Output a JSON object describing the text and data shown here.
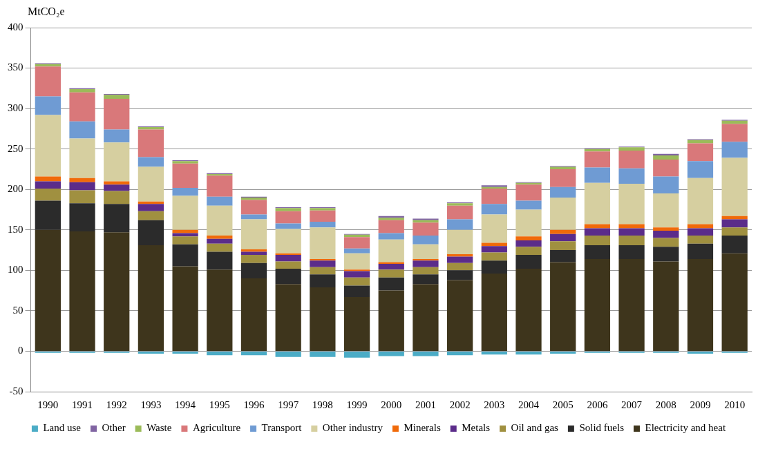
{
  "chart_data": {
    "type": "bar",
    "stacked": true,
    "ylabel": "MtCO₂e",
    "categories": [
      "1990",
      "1991",
      "1992",
      "1993",
      "1994",
      "1995",
      "1996",
      "1997",
      "1998",
      "1999",
      "2000",
      "2001",
      "2002",
      "2003",
      "2004",
      "2005",
      "2006",
      "2007",
      "2008",
      "2009",
      "2010"
    ],
    "series": [
      {
        "name": "Land use",
        "color": "#4bacc6",
        "values": [
          -2,
          -2,
          -2,
          -3,
          -3,
          -5,
          -5,
          -7,
          -7,
          -8,
          -6,
          -6,
          -5,
          -4,
          -4,
          -3,
          -2,
          -2,
          -2,
          -3,
          -2
        ]
      },
      {
        "name": "Electricity and heat",
        "color": "#3e351c",
        "values": [
          150,
          148,
          147,
          131,
          105,
          101,
          90,
          83,
          79,
          67,
          75,
          83,
          88,
          96,
          102,
          110,
          114,
          114,
          111,
          114,
          121
        ]
      },
      {
        "name": "Solid fuels",
        "color": "#2b2b2b",
        "values": [
          36,
          35,
          35,
          31,
          27,
          22,
          19,
          19,
          16,
          14,
          16,
          12,
          12,
          16,
          17,
          15,
          17,
          17,
          18,
          19,
          22
        ]
      },
      {
        "name": "Oil and gas",
        "color": "#a09040",
        "values": [
          15,
          16,
          16,
          11,
          10,
          10,
          10,
          9,
          9,
          10,
          10,
          9,
          9,
          10,
          10,
          11,
          12,
          12,
          11,
          10,
          10
        ]
      },
      {
        "name": "Metals",
        "color": "#5b2c8a",
        "values": [
          9,
          10,
          8,
          9,
          4,
          6,
          4,
          8,
          8,
          8,
          7,
          8,
          8,
          8,
          8,
          9,
          9,
          9,
          9,
          9,
          10
        ]
      },
      {
        "name": "Minerals",
        "color": "#f06a0a",
        "values": [
          6,
          5,
          4,
          3,
          4,
          4,
          3,
          2,
          2,
          2,
          2,
          2,
          3,
          4,
          5,
          5,
          5,
          5,
          4,
          5,
          4
        ]
      },
      {
        "name": "Other industry",
        "color": "#d6cfa0",
        "values": [
          76,
          49,
          48,
          43,
          42,
          37,
          37,
          30,
          39,
          20,
          28,
          18,
          30,
          35,
          33,
          40,
          51,
          50,
          42,
          57,
          72
        ]
      },
      {
        "name": "Transport",
        "color": "#6f9bd3",
        "values": [
          23,
          21,
          16,
          12,
          10,
          11,
          6,
          7,
          7,
          6,
          8,
          11,
          13,
          13,
          11,
          13,
          19,
          19,
          21,
          21,
          20
        ]
      },
      {
        "name": "Agriculture",
        "color": "#d9787a",
        "values": [
          37,
          36,
          38,
          34,
          30,
          26,
          18,
          15,
          14,
          14,
          16,
          16,
          17,
          19,
          20,
          22,
          20,
          22,
          21,
          22,
          22
        ]
      },
      {
        "name": "Waste",
        "color": "#9bbb59",
        "values": [
          3,
          4,
          5,
          3,
          3,
          2,
          3,
          4,
          3,
          3,
          3,
          3,
          3,
          2,
          2,
          3,
          3,
          4,
          5,
          4,
          4
        ]
      },
      {
        "name": "Other",
        "color": "#8064a2",
        "values": [
          1,
          1,
          1,
          1,
          1,
          1,
          1,
          1,
          1,
          1,
          2,
          2,
          1,
          2,
          1,
          1,
          1,
          1,
          2,
          1,
          1
        ]
      }
    ],
    "ylim": [
      -50,
      400
    ],
    "yticks": [
      -50,
      0,
      50,
      100,
      150,
      200,
      250,
      300,
      350,
      400
    ],
    "grid": "y",
    "legend": "bottom"
  }
}
